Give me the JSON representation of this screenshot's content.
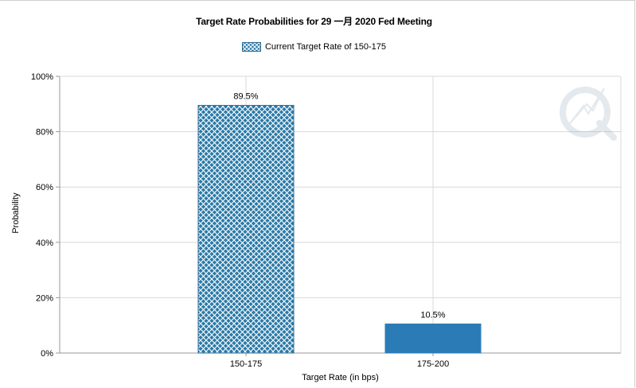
{
  "chart_data": {
    "type": "bar",
    "title": "Target Rate Probabilities for 29 一月 2020  Fed Meeting",
    "legend": [
      "Current Target Rate of 150-175"
    ],
    "legend_position": "top-center",
    "xlabel": "Target Rate (in bps)",
    "ylabel": "Probability",
    "categories": [
      "150-175",
      "175-200"
    ],
    "values": [
      89.5,
      10.5
    ],
    "value_labels": [
      "89.5%",
      "10.5%"
    ],
    "highlighted_category": "150-175",
    "ylim": [
      0,
      100
    ],
    "yticks": [
      "0%",
      "20%",
      "40%",
      "60%",
      "80%",
      "100%"
    ],
    "grid": true,
    "colors": {
      "bar": "#2b7cb6",
      "hatch_fill": "#2a7aa8",
      "hatch_lines": "#ffffff",
      "grid": "#d8d8d8",
      "axis": "#9a9a9a"
    }
  }
}
